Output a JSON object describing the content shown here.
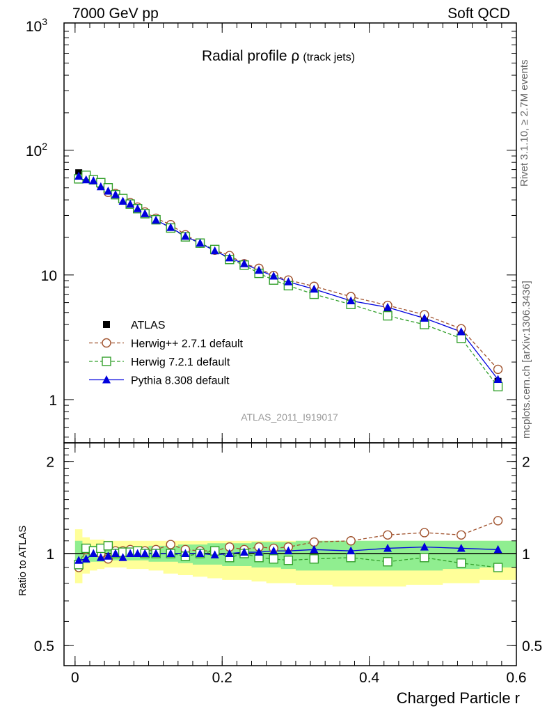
{
  "header": {
    "energy_label": "7000 GeV pp",
    "process_label": "Soft QCD"
  },
  "side_labels": {
    "rivet": "Rivet 3.1.10, ≥ 2.7M events",
    "mcplots": "mcplots.cern.ch [arXiv:1306.3436]"
  },
  "chart_data": [
    {
      "type": "line",
      "title_main": "Radial profile ρ",
      "title_sub": "(track jets)",
      "watermark": "ATLAS_2011_I919017",
      "y_scale": "log",
      "ylim": [
        0.45,
        1050
      ],
      "xlim": [
        -0.015,
        0.6
      ],
      "y_ticks": [
        {
          "value": 1,
          "label": "1"
        },
        {
          "value": 10,
          "label": "10"
        },
        {
          "value": 100,
          "label": "10",
          "exp": "2"
        },
        {
          "value": 1000,
          "label": "10",
          "exp": "3"
        }
      ],
      "legend_position": "center-left",
      "x": [
        0.005,
        0.015,
        0.025,
        0.035,
        0.045,
        0.055,
        0.065,
        0.075,
        0.085,
        0.095,
        0.11,
        0.13,
        0.15,
        0.17,
        0.19,
        0.21,
        0.23,
        0.25,
        0.27,
        0.29,
        0.325,
        0.375,
        0.425,
        0.475,
        0.525,
        0.575
      ],
      "series": [
        {
          "name": "ATLAS",
          "color": "#000000",
          "marker": "square-filled",
          "line": "none",
          "values": [
            66,
            60,
            57,
            53,
            48,
            44,
            40,
            37,
            34,
            31,
            27.5,
            24,
            20.5,
            18,
            15.7,
            13.8,
            12.1,
            10.8,
            9.6,
            8.7,
            7.5,
            6.1,
            5.2,
            4.3,
            3.4,
            1.4
          ]
        },
        {
          "name": "Herwig++ 2.7.1 default",
          "color": "#a0522d",
          "marker": "circle-open",
          "line": "dashed",
          "values": [
            59,
            62,
            58,
            53,
            46,
            45,
            41,
            38,
            35,
            32,
            28.5,
            25.3,
            21,
            18,
            15.8,
            14.3,
            12.3,
            11.3,
            9.9,
            9.1,
            8.1,
            6.7,
            5.7,
            4.8,
            3.7,
            1.75
          ]
        },
        {
          "name": "Herwig 7.2.1 default",
          "color": "#33a02c",
          "marker": "square-open",
          "line": "dashed",
          "values": [
            59,
            63,
            58,
            55,
            50,
            44,
            41,
            37,
            34,
            31,
            27.7,
            23.8,
            20.2,
            18,
            16,
            13.3,
            12,
            10.3,
            9.1,
            8.2,
            7,
            5.8,
            4.7,
            4,
            3.1,
            1.27
          ]
        },
        {
          "name": "Pythia 8.308 default",
          "color": "#0000dd",
          "marker": "triangle-filled",
          "line": "solid",
          "values": [
            62,
            58,
            57,
            51,
            47,
            44,
            39,
            37,
            34,
            31,
            27.5,
            24,
            20.4,
            18,
            15.6,
            13.7,
            12.3,
            10.9,
            9.8,
            8.8,
            7.7,
            6.2,
            5.5,
            4.5,
            3.5,
            1.45
          ]
        }
      ]
    },
    {
      "type": "line",
      "ylabel": "Ratio to ATLAS",
      "xlabel": "Charged Particle r",
      "y_scale": "log",
      "ylim": [
        0.43,
        2.3
      ],
      "xlim": [
        -0.015,
        0.6
      ],
      "x_ticks": [
        {
          "value": 0,
          "label": "0"
        },
        {
          "value": 0.2,
          "label": "0.2"
        },
        {
          "value": 0.4,
          "label": "0.4"
        },
        {
          "value": 0.6,
          "label": "0.6"
        }
      ],
      "y_ticks": [
        {
          "value": 0.5,
          "label": "0.5"
        },
        {
          "value": 1,
          "label": "1"
        },
        {
          "value": 2,
          "label": "2"
        }
      ],
      "reference_line": 1,
      "bin_edges": [
        0,
        0.01,
        0.02,
        0.03,
        0.04,
        0.05,
        0.06,
        0.07,
        0.08,
        0.09,
        0.1,
        0.12,
        0.14,
        0.16,
        0.18,
        0.2,
        0.22,
        0.24,
        0.26,
        0.28,
        0.3,
        0.35,
        0.4,
        0.45,
        0.5,
        0.55,
        0.6
      ],
      "band_stat": {
        "color": "#90ee90",
        "lower": [
          0.9,
          0.93,
          0.94,
          0.94,
          0.95,
          0.95,
          0.95,
          0.95,
          0.95,
          0.95,
          0.94,
          0.94,
          0.93,
          0.92,
          0.92,
          0.91,
          0.91,
          0.9,
          0.9,
          0.89,
          0.88,
          0.88,
          0.88,
          0.88,
          0.89,
          0.9
        ],
        "upper": [
          1.1,
          1.07,
          1.06,
          1.06,
          1.05,
          1.05,
          1.05,
          1.05,
          1.05,
          1.05,
          1.06,
          1.06,
          1.07,
          1.07,
          1.08,
          1.08,
          1.08,
          1.09,
          1.09,
          1.09,
          1.1,
          1.1,
          1.1,
          1.1,
          1.1,
          1.1
        ]
      },
      "band_syst": {
        "color": "#ffff99",
        "lower": [
          0.8,
          0.86,
          0.88,
          0.89,
          0.9,
          0.9,
          0.9,
          0.89,
          0.89,
          0.89,
          0.88,
          0.86,
          0.85,
          0.84,
          0.83,
          0.82,
          0.82,
          0.81,
          0.8,
          0.8,
          0.79,
          0.78,
          0.78,
          0.79,
          0.8,
          0.82
        ],
        "upper": [
          1.2,
          1.13,
          1.11,
          1.11,
          1.1,
          1.1,
          1.1,
          1.1,
          1.1,
          1.1,
          1.1,
          1.1,
          1.1,
          1.1,
          1.1,
          1.1,
          1.1,
          1.1,
          1.1,
          1.1,
          1.1,
          1.1,
          1.1,
          1.1,
          1.1,
          1.1
        ]
      },
      "x": [
        0.005,
        0.015,
        0.025,
        0.035,
        0.045,
        0.055,
        0.065,
        0.075,
        0.085,
        0.095,
        0.11,
        0.13,
        0.15,
        0.17,
        0.19,
        0.21,
        0.23,
        0.25,
        0.27,
        0.29,
        0.325,
        0.375,
        0.425,
        0.475,
        0.525,
        0.575
      ],
      "series": [
        {
          "name": "Herwig++ 2.7.1 default",
          "color": "#a0522d",
          "marker": "circle-open",
          "line": "dashed",
          "values": [
            0.9,
            1.03,
            1.02,
            1.0,
            0.96,
            1.02,
            1.02,
            1.03,
            1.02,
            1.02,
            1.03,
            1.07,
            1.03,
            1.02,
            1.02,
            1.05,
            1.03,
            1.05,
            1.04,
            1.05,
            1.09,
            1.1,
            1.15,
            1.17,
            1.15,
            1.28
          ]
        },
        {
          "name": "Herwig 7.2.1 default",
          "color": "#33a02c",
          "marker": "square-open",
          "line": "dashed",
          "values": [
            0.92,
            1.04,
            1.02,
            1.04,
            1.06,
            1.0,
            1.01,
            1.01,
            1.02,
            1.0,
            1.0,
            1.0,
            0.98,
            1.0,
            1.02,
            0.97,
            1.0,
            0.97,
            0.96,
            0.95,
            0.96,
            0.97,
            0.94,
            0.97,
            0.93,
            0.9
          ]
        },
        {
          "name": "Pythia 8.308 default",
          "color": "#0000dd",
          "marker": "triangle-filled",
          "line": "solid",
          "values": [
            0.95,
            0.96,
            1.0,
            0.97,
            0.98,
            1.0,
            0.97,
            1.0,
            1.0,
            1.0,
            1.0,
            1.0,
            1.0,
            1.0,
            0.99,
            1.0,
            1.01,
            1.01,
            1.02,
            1.02,
            1.03,
            1.02,
            1.04,
            1.05,
            1.04,
            1.03
          ]
        }
      ]
    }
  ]
}
